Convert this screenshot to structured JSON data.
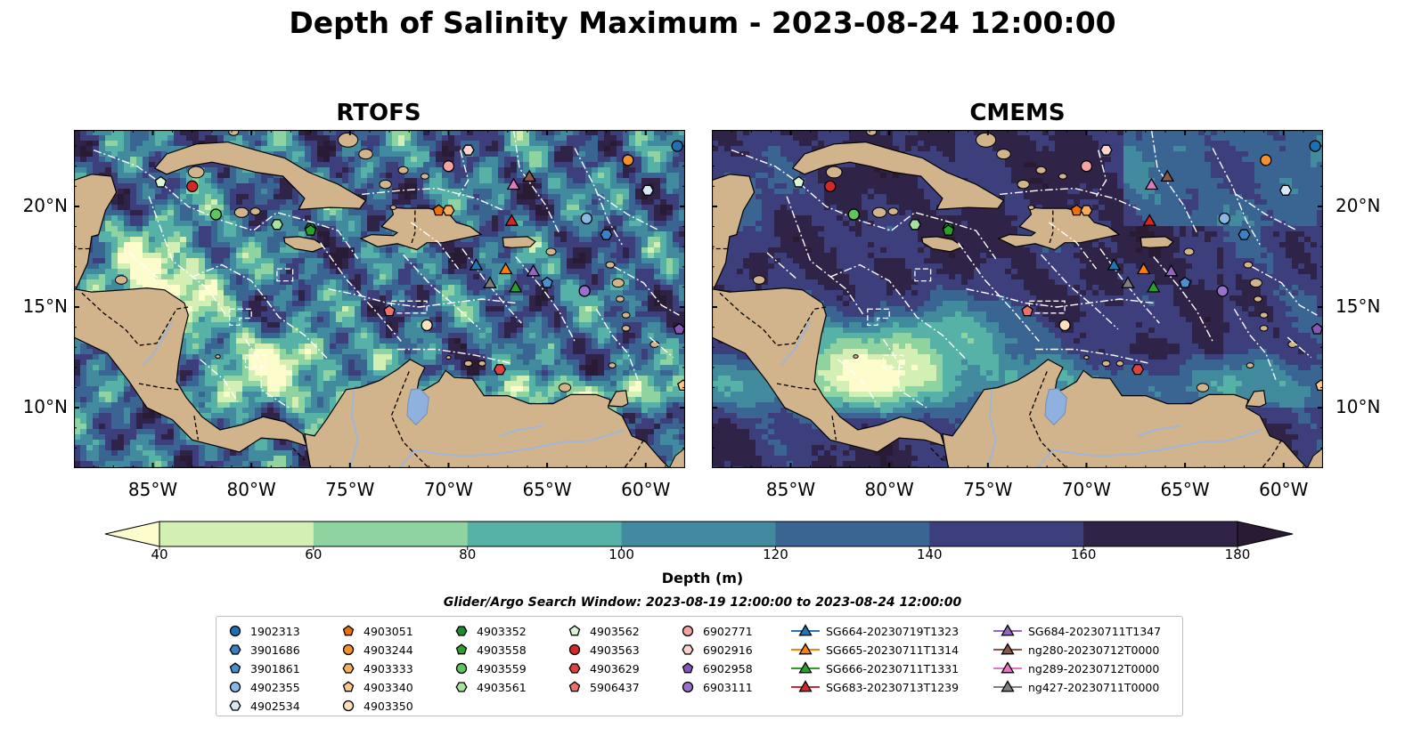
{
  "title": "Depth of Salinity Maximum - 2023-08-24 12:00:00",
  "panels": [
    {
      "title": "RTOFS",
      "source": "rtofs"
    },
    {
      "title": "CMEMS",
      "source": "cmems"
    }
  ],
  "map": {
    "lon_range": [
      -89.0,
      -58.0
    ],
    "lat_range": [
      7.0,
      23.8
    ],
    "lon_ticks": [
      -85,
      -80,
      -75,
      -70,
      -65,
      -60
    ],
    "lon_tick_labels": [
      "85°W",
      "80°W",
      "75°W",
      "70°W",
      "65°W",
      "60°W"
    ],
    "lat_ticks": [
      10,
      15,
      20
    ],
    "lat_tick_labels": [
      "10°N",
      "15°N",
      "20°N"
    ],
    "land_color": "#d2b48c",
    "lake_color": "#8fb1e0",
    "river_color": "#9fb6d6"
  },
  "colorbar": {
    "label": "Depth (m)",
    "boundaries": [
      40,
      60,
      80,
      100,
      120,
      140,
      160,
      180
    ],
    "tick_labels": [
      "40",
      "60",
      "80",
      "100",
      "120",
      "140",
      "160",
      "180"
    ],
    "colors": [
      "#d3efb4",
      "#8fd3a1",
      "#56b2a6",
      "#428b9e",
      "#3a6593",
      "#3c3f7c",
      "#2f2447"
    ],
    "under_color": "#fcfccc",
    "over_color": "#291b34",
    "extend": "both"
  },
  "search_window": "Glider/Argo Search Window: 2023-08-19 12:00:00 to 2023-08-24 12:00:00",
  "legend": [
    {
      "label": "1902313",
      "marker": "circle",
      "color": "#1f6fb2"
    },
    {
      "label": "3901686",
      "marker": "hexagon",
      "color": "#3b7fc4"
    },
    {
      "label": "3901861",
      "marker": "pentagon",
      "color": "#4a90d0"
    },
    {
      "label": "4902355",
      "marker": "circle",
      "color": "#87b8e6"
    },
    {
      "label": "4902534",
      "marker": "hexagon",
      "color": "#d7e8f7"
    },
    {
      "label": "4903051",
      "marker": "pentagon",
      "color": "#e8720c"
    },
    {
      "label": "4903244",
      "marker": "circle",
      "color": "#f4902e"
    },
    {
      "label": "4903333",
      "marker": "hexagon",
      "color": "#f7ac5e"
    },
    {
      "label": "4903340",
      "marker": "pentagon",
      "color": "#fbc78a"
    },
    {
      "label": "4903350",
      "marker": "circle",
      "color": "#fde0c0"
    },
    {
      "label": "4903352",
      "marker": "hexagon",
      "color": "#1e8a2e"
    },
    {
      "label": "4903558",
      "marker": "pentagon",
      "color": "#2ca02c"
    },
    {
      "label": "4903559",
      "marker": "circle",
      "color": "#5cc65c"
    },
    {
      "label": "4903561",
      "marker": "hexagon",
      "color": "#a6e3a1"
    },
    {
      "label": "4903562",
      "marker": "pentagon",
      "color": "#d9f5d3"
    },
    {
      "label": "4903563",
      "marker": "circle",
      "color": "#d62728"
    },
    {
      "label": "4903629",
      "marker": "hexagon",
      "color": "#e0413f"
    },
    {
      "label": "5906437",
      "marker": "pentagon",
      "color": "#ef6f6a"
    },
    {
      "label": "6902771",
      "marker": "circle",
      "color": "#f5a3a0"
    },
    {
      "label": "6902916",
      "marker": "hexagon",
      "color": "#fbd2d0"
    },
    {
      "label": "6902958",
      "marker": "pentagon",
      "color": "#8856b8"
    },
    {
      "label": "6903111",
      "marker": "circle",
      "color": "#9b6fce"
    },
    {
      "label": "SG664-20230719T1323",
      "marker": "triangle-line",
      "color": "#1f77b4"
    },
    {
      "label": "SG665-20230711T1314",
      "marker": "triangle-line",
      "color": "#ff7f0e"
    },
    {
      "label": "SG666-20230711T1331",
      "marker": "triangle-line",
      "color": "#2ca02c"
    },
    {
      "label": "SG683-20230713T1239",
      "marker": "triangle-line",
      "color": "#d62728"
    },
    {
      "label": "SG684-20230711T1347",
      "marker": "triangle-line",
      "color": "#9467bd"
    },
    {
      "label": "ng280-20230712T0000",
      "marker": "triangle-line",
      "color": "#8c564b"
    },
    {
      "label": "ng289-20230712T0000",
      "marker": "triangle-line",
      "color": "#e377c2"
    },
    {
      "label": "ng427-20230711T0000",
      "marker": "triangle-line",
      "color": "#7f7f7f"
    }
  ],
  "platforms": [
    {
      "id": "1902313",
      "lon": -58.4,
      "lat": 23.0
    },
    {
      "id": "3901686",
      "lon": -62.0,
      "lat": 18.6
    },
    {
      "id": "3901861",
      "lon": -65.0,
      "lat": 16.2
    },
    {
      "id": "4902355",
      "lon": -63.0,
      "lat": 19.4
    },
    {
      "id": "4902534",
      "lon": -59.9,
      "lat": 20.8
    },
    {
      "id": "4903051",
      "lon": -70.5,
      "lat": 19.8
    },
    {
      "id": "4903244",
      "lon": -60.9,
      "lat": 22.3
    },
    {
      "id": "4903333",
      "lon": -70.0,
      "lat": 19.8
    },
    {
      "id": "4903340",
      "lon": -58.1,
      "lat": 11.1
    },
    {
      "id": "4903350",
      "lon": -71.1,
      "lat": 14.1
    },
    {
      "id": "4903352",
      "lon": -77.0,
      "lat": 18.9
    },
    {
      "id": "4903558",
      "lon": -77.0,
      "lat": 18.8
    },
    {
      "id": "4903559",
      "lon": -81.8,
      "lat": 19.6
    },
    {
      "id": "4903561",
      "lon": -78.7,
      "lat": 19.1
    },
    {
      "id": "4903562",
      "lon": -84.6,
      "lat": 21.2
    },
    {
      "id": "4903563",
      "lon": -83.0,
      "lat": 21.0
    },
    {
      "id": "4903629",
      "lon": -67.4,
      "lat": 11.9
    },
    {
      "id": "5906437",
      "lon": -73.0,
      "lat": 14.8
    },
    {
      "id": "6902771",
      "lon": -70.0,
      "lat": 22.0
    },
    {
      "id": "6902916",
      "lon": -69.0,
      "lat": 22.8
    },
    {
      "id": "6902958",
      "lon": -58.3,
      "lat": 13.9
    },
    {
      "id": "6903111",
      "lon": -63.1,
      "lat": 15.8
    },
    {
      "id": "SG664-20230719T1323",
      "lon": -68.6,
      "lat": 17.1
    },
    {
      "id": "SG665-20230711T1314",
      "lon": -67.1,
      "lat": 16.9
    },
    {
      "id": "SG666-20230711T1331",
      "lon": -66.6,
      "lat": 16.0
    },
    {
      "id": "SG683-20230713T1239",
      "lon": -66.8,
      "lat": 19.3
    },
    {
      "id": "SG684-20230711T1347",
      "lon": -65.7,
      "lat": 16.8
    },
    {
      "id": "ng280-20230712T0000",
      "lon": -65.9,
      "lat": 21.5
    },
    {
      "id": "ng289-20230712T0000",
      "lon": -66.7,
      "lat": 21.1
    },
    {
      "id": "ng427-20230711T0000",
      "lon": -67.9,
      "lat": 16.2
    }
  ]
}
